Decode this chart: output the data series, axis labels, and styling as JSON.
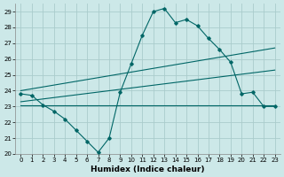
{
  "xlabel": "Humidex (Indice chaleur)",
  "bg_color": "#cce8e8",
  "grid_color": "#aacccc",
  "line_color": "#006666",
  "xlim": [
    -0.5,
    23.5
  ],
  "ylim": [
    20,
    29.5
  ],
  "yticks": [
    20,
    21,
    22,
    23,
    24,
    25,
    26,
    27,
    28,
    29
  ],
  "xticks": [
    0,
    1,
    2,
    3,
    4,
    5,
    6,
    7,
    8,
    9,
    10,
    11,
    12,
    13,
    14,
    15,
    16,
    17,
    18,
    19,
    20,
    21,
    22,
    23
  ],
  "line1_x": [
    0,
    1,
    2,
    3,
    4,
    5,
    6,
    7,
    8,
    9,
    10,
    11,
    12,
    13,
    14,
    15,
    16,
    17,
    18,
    19,
    20,
    21,
    22,
    23
  ],
  "line1_y": [
    23.8,
    23.7,
    23.1,
    22.7,
    22.2,
    21.5,
    20.8,
    20.1,
    21.0,
    23.9,
    25.7,
    27.5,
    29.0,
    29.2,
    28.3,
    28.5,
    28.1,
    27.3,
    26.6,
    25.8,
    23.8,
    23.9,
    23.0,
    23.0
  ],
  "line2_x": [
    0,
    23
  ],
  "line2_y": [
    23.1,
    23.1
  ],
  "line3_x": [
    0,
    23
  ],
  "line3_y": [
    24.0,
    26.7
  ],
  "line4_x": [
    0,
    23
  ],
  "line4_y": [
    23.3,
    25.3
  ]
}
